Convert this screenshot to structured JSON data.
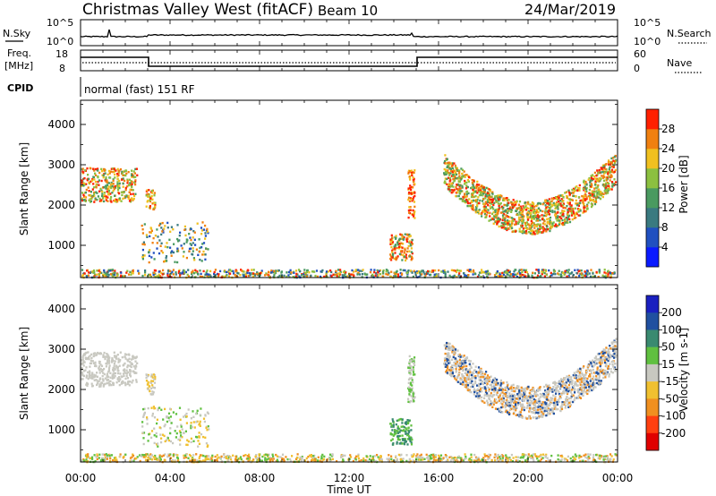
{
  "header": {
    "title": "Christmas Valley West (fitACF)",
    "beam": "Beam 10",
    "date": "24/Mar/2019"
  },
  "status_panels": {
    "nsky_label": "N.Sky",
    "nsearch_label": "N.Search",
    "noise_ticks": [
      "10^5",
      "10^0"
    ],
    "freq_label_1": "Freq.",
    "freq_label_2": "[MHz]",
    "freq_ticks": [
      "18",
      "8"
    ],
    "nave_label": "Nave",
    "nave_ticks": [
      "60",
      "0"
    ],
    "cpid_label": "CPID",
    "cpid_text": "normal (fast) 151 RF"
  },
  "chart_data": [
    {
      "type": "heatmap",
      "name": "power-panel",
      "ylabel": "Slant Range [km]",
      "yticks": [
        "1000",
        "2000",
        "3000",
        "4000"
      ],
      "ylim": [
        200,
        4600
      ],
      "xlim": [
        0,
        24
      ],
      "colorbar": {
        "label": "Power [dB]",
        "ticks": [
          "4",
          "8",
          "12",
          "16",
          "20",
          "24",
          "28"
        ],
        "colors": [
          "#0a1aff",
          "#2050c0",
          "#3a7a80",
          "#4a9a60",
          "#8cc040",
          "#f0c020",
          "#f08010",
          "#ff2000"
        ]
      }
    },
    {
      "type": "heatmap",
      "name": "velocity-panel",
      "ylabel": "Slant Range [km]",
      "yticks": [
        "1000",
        "2000",
        "3000",
        "4000"
      ],
      "ylim": [
        200,
        4600
      ],
      "xlim": [
        0,
        24
      ],
      "colorbar": {
        "label": "Velocity [m s-1]",
        "ticks": [
          "200",
          "100",
          "50",
          "15",
          "-15",
          "-50",
          "-100",
          "-200"
        ],
        "colors": [
          "#1a20c0",
          "#2050a0",
          "#3a8a70",
          "#60c040",
          "#c8c8c0",
          "#f0c030",
          "#f09020",
          "#ff4010",
          "#e00000"
        ]
      }
    }
  ],
  "x_axis": {
    "ticks": [
      "00:00",
      "04:00",
      "08:00",
      "12:00",
      "16:00",
      "20:00",
      "00:00"
    ],
    "label": "Time UT"
  }
}
